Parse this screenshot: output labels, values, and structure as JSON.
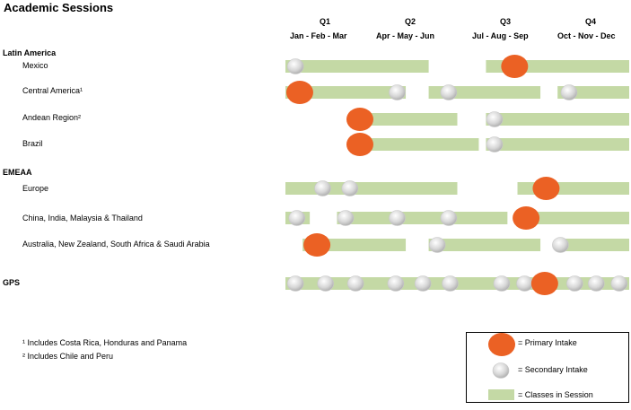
{
  "chart_data": {
    "type": "gantt",
    "title": "Academic Sessions",
    "quarters": [
      "Q1",
      "Q2",
      "Q3",
      "Q4"
    ],
    "month_groups": [
      "Jan - Feb - Mar",
      "Apr - May - Jun",
      "Jul - Aug - Sep",
      "Oct - Nov - Dec"
    ],
    "x_unit": "month (1 = start of Jan, 13 = end of Dec)",
    "xlim": [
      1,
      13
    ],
    "groups": [
      {
        "name": "Latin America",
        "rows": [
          {
            "label": "Mexico",
            "sessions": [
              [
                1,
                6
              ],
              [
                8,
                13
              ]
            ],
            "primary": [
              9
            ],
            "secondary": [
              1.35
            ]
          },
          {
            "label": "Central America¹",
            "sessions": [
              [
                1,
                5.2
              ],
              [
                6,
                9.9
              ],
              [
                10.5,
                13
              ]
            ],
            "primary": [
              1.5
            ],
            "secondary": [
              4.9,
              6.7,
              10.9
            ]
          },
          {
            "label": "Andean Region²",
            "sessions": [
              [
                3.2,
                7
              ],
              [
                8,
                13
              ]
            ],
            "primary": [
              3.6
            ],
            "secondary": [
              8.3
            ]
          },
          {
            "label": "Brazil",
            "sessions": [
              [
                3.2,
                7.75
              ],
              [
                8,
                13
              ]
            ],
            "primary": [
              3.6
            ],
            "secondary": [
              8.3
            ]
          }
        ]
      },
      {
        "name": "EMEAA",
        "rows": [
          {
            "label": "Europe",
            "sessions": [
              [
                1,
                7
              ],
              [
                9.1,
                13
              ]
            ],
            "primary": [
              10.1
            ],
            "secondary": [
              2.3,
              3.25
            ]
          },
          {
            "label": "China, India, Malaysia & Thailand",
            "sessions": [
              [
                1,
                1.85
              ],
              [
                2.8,
                8.75
              ],
              [
                9,
                13
              ]
            ],
            "primary": [
              9.4
            ],
            "secondary": [
              1.4,
              3.1,
              4.9,
              6.7
            ]
          },
          {
            "label": "Australia, New Zealand, South Africa & Saudi Arabia",
            "sessions": [
              [
                1.6,
                5.2
              ],
              [
                6,
                9.9
              ],
              [
                10.5,
                13
              ]
            ],
            "primary": [
              2.1
            ],
            "secondary": [
              6.3,
              10.6
            ]
          }
        ]
      },
      {
        "name": "GPS",
        "rows": [
          {
            "label": "",
            "sessions": [
              [
                1,
                13
              ]
            ],
            "primary": [
              10.05
            ],
            "secondary": [
              1.35,
              2.4,
              3.45,
              4.85,
              5.8,
              6.75,
              8.55,
              9.35,
              11.1,
              11.85,
              12.65
            ]
          }
        ]
      }
    ],
    "legend": {
      "primary": "= Primary Intake",
      "secondary": "= Secondary Intake",
      "session": "= Classes in Session"
    },
    "colors": {
      "primary": "#EB6124",
      "secondary": "#D6D6D6",
      "session": "#C4D9A5"
    },
    "footnotes": [
      "¹ Includes Costa Rica, Honduras and Panama",
      "² Includes Chile and Peru"
    ]
  }
}
